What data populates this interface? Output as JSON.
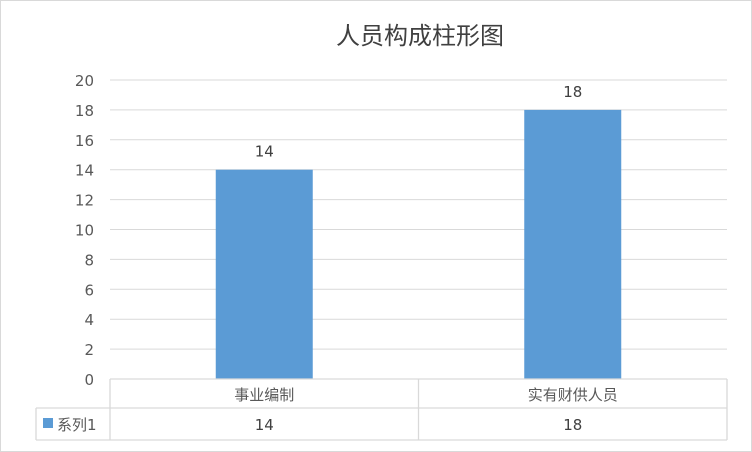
{
  "chart_data": {
    "type": "bar",
    "title": "人员构成柱形图",
    "categories": [
      "事业编制",
      "实有财供人员"
    ],
    "series": [
      {
        "name": "系列1",
        "values": [
          14,
          18
        ],
        "color": "#5b9bd5"
      }
    ],
    "ylim": [
      0,
      20
    ],
    "yticks": [
      0,
      2,
      4,
      6,
      8,
      10,
      12,
      14,
      16,
      18,
      20
    ],
    "grid": true,
    "data_labels": true,
    "legend": "data-table"
  }
}
